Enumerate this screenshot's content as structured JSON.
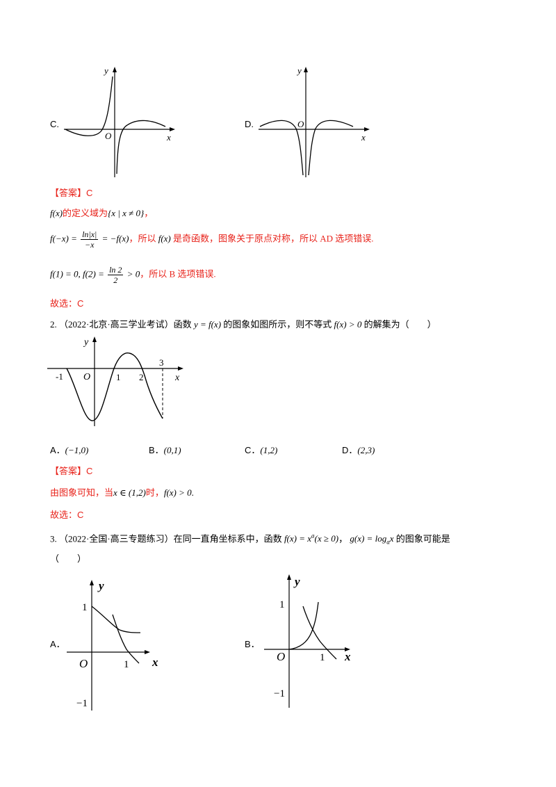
{
  "q1": {
    "option_c": "C.",
    "option_d": "D.",
    "answer_label": "【答案】C",
    "line1_expr": "f(x)",
    "line1_text": "的定义域为",
    "line1_set": "{x | x ≠ 0}",
    "line1_tail": "，",
    "line2_lhs": "f(−x) =",
    "line2_num": "ln|x|",
    "line2_den": "−x",
    "line2_rhs": "= −f(x)",
    "line2_text_a": "，所以",
    "line2_fx": "f(x)",
    "line2_text_b": "是奇函数，图象关于原点对称，所以 AD 选项错误.",
    "line3_expr_a": "f(1) = 0, f(2) =",
    "line3_num": "ln 2",
    "line3_den": "2",
    "line3_expr_b": "> 0",
    "line3_text": "，所以 B 选项错误.",
    "choice": "故选：C"
  },
  "q2": {
    "number": "2.",
    "source": "（2022·北京·高三学业考试）",
    "stem_a": "函数",
    "stem_expr": "y = f(x)",
    "stem_b": "的图象如图所示，则不等式",
    "stem_expr2": "f(x) > 0",
    "stem_c": "的解集为（　　）",
    "graph_labels": {
      "y": "y",
      "x": "x",
      "o": "O",
      "m1": "-1",
      "one": "1",
      "two": "2",
      "three": "3"
    },
    "options": [
      {
        "letter": "A．",
        "value": "(−1,0)"
      },
      {
        "letter": "B．",
        "value": "(0,1)"
      },
      {
        "letter": "C．",
        "value": "(1,2)"
      },
      {
        "letter": "D．",
        "value": "(2,3)"
      }
    ],
    "answer_label": "【答案】C",
    "sol_a": "由图象可知，当",
    "sol_expr": "x ∈ (1,2)",
    "sol_b": "时，",
    "sol_expr2": "f(x) > 0",
    "sol_c": ".",
    "choice": "故选：C"
  },
  "q3": {
    "number": "3.",
    "source": "（2022·全国·高三专题练习）",
    "stem_a": "在同一直角坐标系中，函数",
    "stem_expr": "f(x) = x",
    "stem_sup": "a",
    "stem_expr_b": "(x ≥ 0)",
    "stem_b": "，",
    "stem_expr2": "g(x) = log",
    "stem_sub": "a",
    "stem_expr2_b": "x",
    "stem_c": "的图象可能是",
    "stem_paren": "（　　）",
    "option_a": "A．",
    "option_b": "B．",
    "graph_labels": {
      "y": "y",
      "x": "x",
      "o": "O",
      "one": "1",
      "m1": "−1"
    }
  }
}
